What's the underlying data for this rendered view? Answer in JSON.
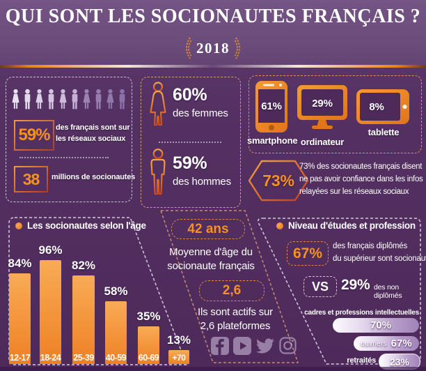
{
  "header": {
    "title": "QUI SONT LES SOCIONAUTES FRANÇAIS ?",
    "year": "2018"
  },
  "reach_panel": {
    "pct_value": "59%",
    "pct_line1": "des français sont sur",
    "pct_line2": "les réseaux sociaux",
    "count_value": "38",
    "count_text": "millions de socionautes",
    "people_total": 10,
    "people_highlighted": 6
  },
  "gender_panel": {
    "women_value": "60%",
    "women_label": "des femmes",
    "men_value": "59%",
    "men_label": "des hommes"
  },
  "devices_panel": {
    "items": [
      {
        "icon": "smartphone-icon",
        "value": "61%",
        "label": "smartphone"
      },
      {
        "icon": "desktop-icon",
        "value": "29%",
        "label": "ordinateur"
      },
      {
        "icon": "tablet-icon",
        "value": "8%",
        "label": "tablette"
      }
    ]
  },
  "trust_section": {
    "value": "73%",
    "line1": "73% des socionautes français disent",
    "line2": "ne pas avoir confiance dans les infos",
    "line3": "relayées sur les réseaux sociaux"
  },
  "center_column": {
    "age_value": "42 ans",
    "age_line1": "Moyenne d'âge du",
    "age_line2": "socionaute français",
    "platforms_value": "2,6",
    "platforms_line1": "Ils sont actifs sur",
    "platforms_line2": "2,6 plateformes",
    "social_icons": [
      "facebook",
      "youtube",
      "twitter",
      "instagram"
    ]
  },
  "education_panel": {
    "title": "Niveau d'études et profession",
    "grad_value": "67%",
    "grad_line1": "des français diplômés",
    "grad_line2": "du supérieur sont socionautes",
    "vs_label": "VS",
    "nongrad_value": "29%",
    "nongrad_text": "des non diplômés",
    "professions": [
      {
        "label": "cadres et professions intellectuelles",
        "value": "70%"
      },
      {
        "label": "ouvriers",
        "value": "67%"
      },
      {
        "label": "retraités",
        "value": "23%"
      }
    ]
  },
  "chart_data": [
    {
      "type": "bar",
      "title": "Les socionautes selon l'âge",
      "categories": [
        "12-17",
        "18-24",
        "25-39",
        "40-59",
        "60-69",
        "+70"
      ],
      "values": [
        84,
        96,
        82,
        58,
        35,
        13
      ],
      "unit": "%",
      "ylim": [
        0,
        100
      ],
      "grid": false,
      "value_labels": true,
      "orientation": "vertical"
    },
    {
      "type": "bar",
      "title": "Niveau d'études et profession",
      "categories": [
        "cadres et professions intellectuelles",
        "ouvriers",
        "retraités"
      ],
      "values": [
        70,
        67,
        23
      ],
      "unit": "%",
      "orientation": "horizontal"
    }
  ],
  "colors": {
    "accent_orange": "#f0861f",
    "background_purple": "#4e2a5b",
    "header_purple": "#6a4b79",
    "bar_gradient_top": "#f8a54e",
    "bar_gradient_bottom": "#ec7a17",
    "muted_icon_lavender": "#cbb5da"
  }
}
